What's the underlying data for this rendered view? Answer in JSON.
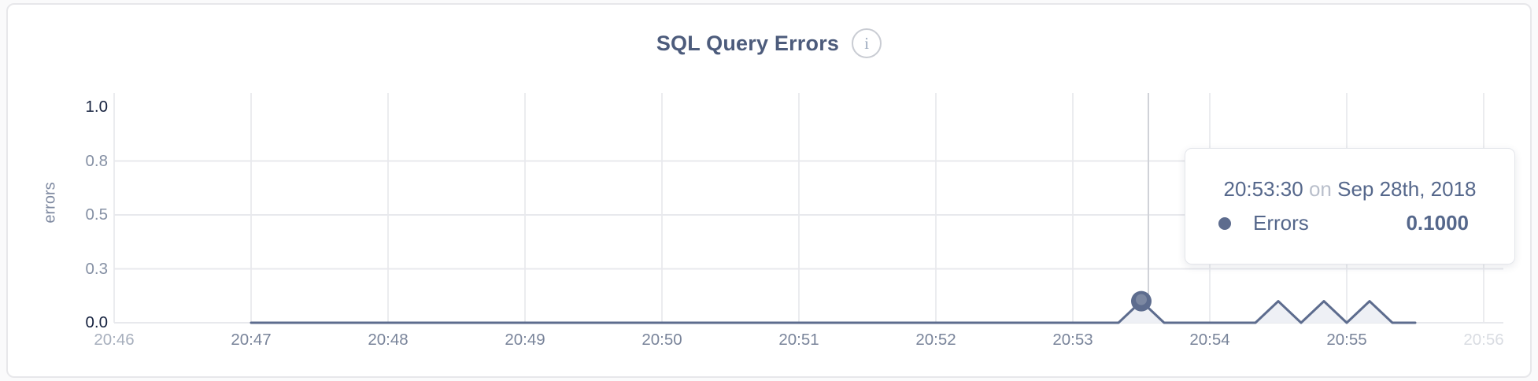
{
  "card": {
    "title": "SQL Query Errors",
    "info_icon_glyph": "i"
  },
  "tooltip": {
    "time": "20:53:30",
    "connector": "on",
    "date": "Sep 28th, 2018",
    "series_label": "Errors",
    "value": "0.1000"
  },
  "colors": {
    "line": "#5d6c8e",
    "area_fill": "#eef0f5",
    "marker": "#5d6c8e",
    "marker_inner": "#7c88a2",
    "grid_h": "#e8e9ed",
    "grid_v": "#ebecef",
    "crosshair": "#d0d2d8",
    "baseline": "#e8e9ed"
  },
  "chart_data": {
    "type": "line",
    "title": "SQL Query Errors",
    "xlabel": "",
    "ylabel": "errors",
    "xlim": [
      "20:46:00",
      "20:56:00"
    ],
    "ylim": [
      0,
      1
    ],
    "grid": true,
    "legend_position": "tooltip-only",
    "x_ticks": [
      {
        "label": "20:46",
        "time": "20:46:00",
        "muted": true
      },
      {
        "label": "20:47",
        "time": "20:47:00"
      },
      {
        "label": "20:48",
        "time": "20:48:00"
      },
      {
        "label": "20:49",
        "time": "20:49:00"
      },
      {
        "label": "20:50",
        "time": "20:50:00"
      },
      {
        "label": "20:51",
        "time": "20:51:00"
      },
      {
        "label": "20:52",
        "time": "20:52:00"
      },
      {
        "label": "20:53",
        "time": "20:53:00"
      },
      {
        "label": "20:54",
        "time": "20:54:00"
      },
      {
        "label": "20:55",
        "time": "20:55:00"
      },
      {
        "label": "20:56",
        "time": "20:56:00",
        "faded": true
      }
    ],
    "y_ticks": [
      {
        "label": "1.0",
        "value": 1.0,
        "emphasis": true
      },
      {
        "label": "0.8",
        "value": 0.75
      },
      {
        "label": "0.5",
        "value": 0.5
      },
      {
        "label": "0.3",
        "value": 0.25
      },
      {
        "label": "0.0",
        "value": 0.0,
        "emphasis": true
      }
    ],
    "series": [
      {
        "name": "Errors",
        "points": [
          [
            "20:47:00",
            0
          ],
          [
            "20:53:20",
            0
          ],
          [
            "20:53:30",
            0.1
          ],
          [
            "20:53:40",
            0
          ],
          [
            "20:54:20",
            0
          ],
          [
            "20:54:30",
            0.1
          ],
          [
            "20:54:40",
            0
          ],
          [
            "20:54:50",
            0.1
          ],
          [
            "20:55:00",
            0
          ],
          [
            "20:55:10",
            0.1
          ],
          [
            "20:55:20",
            0
          ],
          [
            "20:55:30",
            0
          ]
        ]
      }
    ],
    "hovered_point": {
      "series": "Errors",
      "time": "20:53:30",
      "value": 0.1,
      "display_value": "0.1000"
    }
  }
}
